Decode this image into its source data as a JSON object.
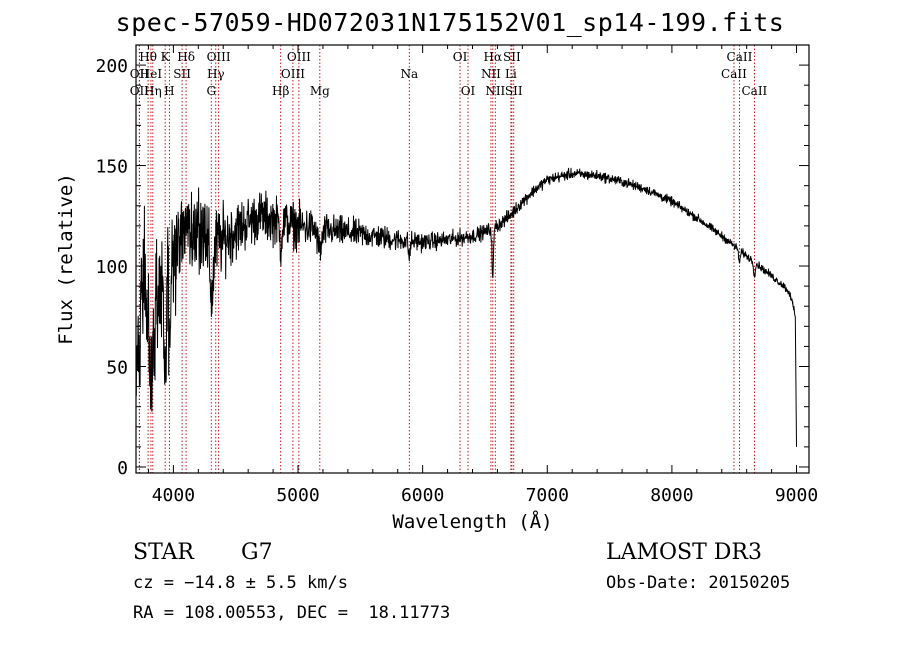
{
  "title": "spec-57059-HD072031N175152V01_sp14-199.fits",
  "info": {
    "object_class": "STAR",
    "subclass": "G7",
    "survey": "LAMOST DR3",
    "redshift": "cz = −14.8 ± 5.5 km/s",
    "obs_date": "Obs-Date: 20150205",
    "coords": "RA = 108.00553, DEC =  18.11773"
  },
  "chart_data": {
    "type": "line",
    "title": "spec-57059-HD072031N175152V01_sp14-199.fits",
    "xlabel": "Wavelength (Å)",
    "ylabel": "Flux (relative)",
    "xlim": [
      3700,
      9100
    ],
    "ylim": [
      -3,
      210
    ],
    "xticks": [
      4000,
      5000,
      6000,
      7000,
      8000,
      9000
    ],
    "yticks": [
      0,
      50,
      100,
      150,
      200
    ],
    "continuum": [
      [
        3700,
        60
      ],
      [
        3750,
        95
      ],
      [
        3800,
        100
      ],
      [
        3850,
        90
      ],
      [
        3900,
        85
      ],
      [
        3950,
        100
      ],
      [
        4000,
        110
      ],
      [
        4100,
        120
      ],
      [
        4200,
        115
      ],
      [
        4300,
        110
      ],
      [
        4400,
        113
      ],
      [
        4500,
        118
      ],
      [
        4600,
        122
      ],
      [
        4700,
        125
      ],
      [
        4800,
        123
      ],
      [
        5000,
        120
      ],
      [
        5200,
        118
      ],
      [
        5500,
        116
      ],
      [
        5800,
        113
      ],
      [
        6000,
        112
      ],
      [
        6200,
        113
      ],
      [
        6400,
        115
      ],
      [
        6500,
        117
      ],
      [
        6600,
        120
      ],
      [
        6700,
        125
      ],
      [
        6800,
        132
      ],
      [
        6900,
        138
      ],
      [
        7000,
        143
      ],
      [
        7200,
        146
      ],
      [
        7400,
        145
      ],
      [
        7600,
        142
      ],
      [
        7800,
        138
      ],
      [
        8000,
        132
      ],
      [
        8200,
        124
      ],
      [
        8400,
        115
      ],
      [
        8600,
        105
      ],
      [
        8800,
        95
      ],
      [
        8900,
        90
      ],
      [
        8950,
        86
      ],
      [
        8990,
        75
      ],
      [
        9000,
        10
      ]
    ],
    "series": [
      {
        "name": "flux",
        "noise": [
          [
            3700,
            40
          ],
          [
            4000,
            30
          ],
          [
            4200,
            25
          ],
          [
            4400,
            18
          ],
          [
            4600,
            14
          ],
          [
            5000,
            12
          ],
          [
            5200,
            9
          ],
          [
            5600,
            7
          ],
          [
            6000,
            5
          ],
          [
            6500,
            4
          ],
          [
            7000,
            3
          ],
          [
            8000,
            2.5
          ],
          [
            9000,
            2
          ]
        ]
      }
    ],
    "absorption_features": [
      {
        "x": 3820,
        "depth": 60,
        "width": 25
      },
      {
        "x": 3934,
        "depth": 45,
        "width": 12
      },
      {
        "x": 3968,
        "depth": 40,
        "width": 12
      },
      {
        "x": 4308,
        "depth": 25,
        "width": 18
      },
      {
        "x": 4861,
        "depth": 12,
        "width": 12
      },
      {
        "x": 5175,
        "depth": 10,
        "width": 25
      },
      {
        "x": 5893,
        "depth": 8,
        "width": 10
      },
      {
        "x": 6563,
        "depth": 25,
        "width": 8
      },
      {
        "x": 8542,
        "depth": 6,
        "width": 10
      },
      {
        "x": 8662,
        "depth": 6,
        "width": 10
      }
    ],
    "lines": [
      {
        "label": "Hθ",
        "x": 3797,
        "row": 1
      },
      {
        "label": "OII",
        "x": 3727,
        "row": 2
      },
      {
        "label": "OII",
        "x": 3727,
        "row": 3
      },
      {
        "label": "HeI",
        "x": 3820,
        "row": 2
      },
      {
        "label": "Hη",
        "x": 3835,
        "row": 3
      },
      {
        "label": "K",
        "x": 3934,
        "row": 1
      },
      {
        "label": "SII",
        "x": 4070,
        "row": 2
      },
      {
        "label": "H",
        "x": 3968,
        "row": 3
      },
      {
        "label": "Hδ",
        "x": 4102,
        "row": 1
      },
      {
        "label": "OIII",
        "x": 4363,
        "row": 1
      },
      {
        "label": "Hγ",
        "x": 4340,
        "row": 2
      },
      {
        "label": "G",
        "x": 4304,
        "row": 3
      },
      {
        "label": "Hβ",
        "x": 4861,
        "row": 3
      },
      {
        "label": "OIII",
        "x": 5007,
        "row": 1
      },
      {
        "label": "OIII",
        "x": 4959,
        "row": 2
      },
      {
        "label": "Mg",
        "x": 5175,
        "row": 3
      },
      {
        "label": "Na",
        "x": 5893,
        "row": 2
      },
      {
        "label": "OI",
        "x": 6300,
        "row": 1
      },
      {
        "label": "OI",
        "x": 6364,
        "row": 3
      },
      {
        "label": "Hα",
        "x": 6563,
        "row": 1
      },
      {
        "label": "NII",
        "x": 6548,
        "row": 2
      },
      {
        "label": "NII",
        "x": 6583,
        "row": 3
      },
      {
        "label": "SII",
        "x": 6716,
        "row": 1
      },
      {
        "label": "Li",
        "x": 6708,
        "row": 2
      },
      {
        "label": "SII",
        "x": 6731,
        "row": 3
      },
      {
        "label": "CaII",
        "x": 8542,
        "row": 1
      },
      {
        "label": "CaII",
        "x": 8498,
        "row": 2
      },
      {
        "label": "CaII",
        "x": 8662,
        "row": 3
      }
    ]
  }
}
